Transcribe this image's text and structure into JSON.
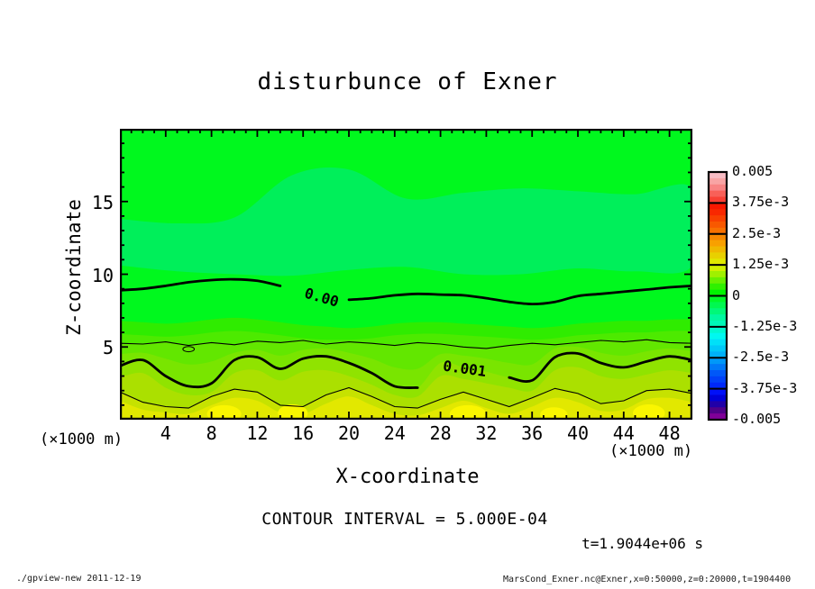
{
  "title": "disturbunce of Exner",
  "axes": {
    "x": {
      "label": "X-coordinate",
      "unit": "(×1000 m)",
      "ticks": [
        4,
        8,
        12,
        16,
        20,
        24,
        28,
        32,
        36,
        40,
        44,
        48
      ],
      "range": [
        0,
        50
      ]
    },
    "y": {
      "label": "Z-coordinate",
      "unit": "(×1000 m)",
      "ticks": [
        5,
        10,
        15
      ],
      "range": [
        0,
        20
      ]
    }
  },
  "notes": {
    "contour_interval": "CONTOUR INTERVAL = 5.000E-04",
    "time": "t=1.9044e+06 s"
  },
  "footer": {
    "left": "./gpview-new  2011-12-19",
    "right": "MarsCond_Exner.nc@Exner,x=0:50000,z=0:20000,t=1904400"
  },
  "colorbar": {
    "labels": [
      "0.005",
      "3.75e-3",
      "2.5e-3",
      "1.25e-3",
      "0",
      "-1.25e-3",
      "-2.5e-3",
      "-3.75e-3",
      "-0.005"
    ],
    "boundary_values": [
      0.005,
      0.00375,
      0.0025,
      0.00125,
      0,
      -0.00125,
      -0.0025,
      -0.00375,
      -0.005
    ],
    "segments": [
      [
        "#f8bcc4",
        "#f8a4a4",
        "#f88484",
        "#f86058",
        "#f84034"
      ],
      [
        "#f81800",
        "#f82800",
        "#f84000",
        "#f85800",
        "#f87000"
      ],
      [
        "#f88800",
        "#f8a000",
        "#f0b800",
        "#e8d000",
        "#e0e800"
      ],
      [
        "#d0f000",
        "#a0f000",
        "#68f000",
        "#30f000",
        "#00f400"
      ],
      [
        "#00f828",
        "#00f850",
        "#00f878",
        "#00f8a0",
        "#00f8b8"
      ],
      [
        "#00f8d0",
        "#00f8f0",
        "#00e0f8",
        "#00c8f8",
        "#00b0f8"
      ],
      [
        "#0098f8",
        "#0078f8",
        "#0058f8",
        "#0040f8",
        "#0028f8"
      ],
      [
        "#0010f8",
        "#0000d8",
        "#2000a8",
        "#500088",
        "#800098"
      ]
    ]
  },
  "chart_data": {
    "type": "heatmap",
    "subtype": "filled_contour",
    "title": "disturbunce of Exner",
    "xlabel": "X-coordinate (×1000 m)",
    "ylabel": "Z-coordinate (×1000 m)",
    "xlim": [
      0,
      50
    ],
    "ylim": [
      0,
      20
    ],
    "contour_interval": 0.0005,
    "fill_interval": 0.00025,
    "value_range": [
      -0.005,
      0.005
    ],
    "colors": {
      "background": "#00f81e",
      "shade_patch": "#00ef5a",
      "hot_spot": "#faf600",
      "line": "#000000"
    },
    "x_samples": [
      0,
      2,
      4,
      6,
      8,
      10,
      12,
      14,
      16,
      18,
      20,
      22,
      24,
      26,
      28,
      30,
      32,
      34,
      36,
      38,
      40,
      42,
      44,
      46,
      48,
      50
    ],
    "contours": [
      {
        "level": 0.0,
        "style": "thick",
        "smooth": true,
        "z": [
          8.9,
          9.0,
          9.2,
          9.45,
          9.6,
          9.65,
          9.55,
          9.2,
          8.8,
          8.5,
          8.25,
          8.35,
          8.55,
          8.65,
          8.6,
          8.55,
          8.35,
          8.1,
          7.95,
          8.1,
          8.5,
          8.65,
          8.8,
          8.95,
          9.1,
          9.2
        ],
        "label": {
          "text": "0.00",
          "gap": [
            15.4,
            19.8
          ],
          "x": 17.6,
          "z": 8.35,
          "angle": 16
        }
      },
      {
        "level": 0.0005,
        "style": "thin",
        "smooth": false,
        "z": [
          5.25,
          5.2,
          5.35,
          5.1,
          5.3,
          5.15,
          5.4,
          5.3,
          5.45,
          5.2,
          5.35,
          5.25,
          5.1,
          5.3,
          5.2,
          5.0,
          4.9,
          5.1,
          5.25,
          5.15,
          5.3,
          5.45,
          5.35,
          5.5,
          5.3,
          5.25
        ],
        "label": null
      },
      {
        "level": 0.001,
        "style": "thick",
        "smooth": true,
        "z": [
          3.7,
          4.1,
          3.0,
          2.3,
          2.5,
          4.1,
          4.3,
          3.5,
          4.2,
          4.35,
          3.9,
          3.2,
          2.3,
          2.2,
          3.9,
          3.6,
          3.3,
          2.9,
          2.7,
          4.3,
          4.55,
          3.9,
          3.6,
          4.0,
          4.35,
          4.1
        ],
        "label": {
          "text": "0.001",
          "gap": [
            26.9,
            33.3
          ],
          "x": 30.1,
          "z": 3.45,
          "angle": 8
        }
      },
      {
        "level": 0.0015,
        "style": "thin",
        "smooth": false,
        "z": [
          1.9,
          1.2,
          0.9,
          0.8,
          1.6,
          2.1,
          1.9,
          1.0,
          0.9,
          1.7,
          2.2,
          1.6,
          0.9,
          0.8,
          1.4,
          1.9,
          1.4,
          0.9,
          1.5,
          2.15,
          1.8,
          1.1,
          1.3,
          2.0,
          2.1,
          1.8
        ],
        "label": null
      }
    ],
    "mini_loop": {
      "x": 6.0,
      "z": 4.85,
      "rx": 0.5,
      "rz": 0.18
    },
    "fill_bands": [
      {
        "value_top": 0.00025,
        "color": "#2fec00",
        "smooth": true,
        "z": [
          6.8,
          6.7,
          6.6,
          6.7,
          6.9,
          7.0,
          6.9,
          6.7,
          6.5,
          6.4,
          6.3,
          6.4,
          6.6,
          6.7,
          6.7,
          6.6,
          6.5,
          6.4,
          6.3,
          6.4,
          6.6,
          6.7,
          6.8,
          6.8,
          6.9,
          6.9
        ]
      },
      {
        "value_top": 0.0004,
        "color": "#4dea00",
        "smooth": true,
        "z": [
          5.9,
          5.8,
          5.7,
          5.8,
          6.0,
          6.1,
          6.0,
          5.8,
          5.6,
          5.5,
          5.5,
          5.6,
          5.8,
          5.9,
          5.9,
          5.8,
          5.7,
          5.6,
          5.5,
          5.6,
          5.8,
          5.9,
          6.0,
          6.0,
          6.1,
          6.1
        ]
      },
      {
        "value_top": 0.0005,
        "color": "#62e700",
        "smooth": false,
        "z": [
          5.25,
          5.2,
          5.35,
          5.1,
          5.3,
          5.15,
          5.4,
          5.3,
          5.45,
          5.2,
          5.35,
          5.25,
          5.1,
          5.3,
          5.2,
          5.0,
          4.9,
          5.1,
          5.25,
          5.15,
          5.3,
          5.45,
          5.35,
          5.5,
          5.3,
          5.25
        ]
      },
      {
        "value_top": 0.00075,
        "color": "#79e500",
        "smooth": true,
        "z": [
          4.5,
          4.6,
          4.2,
          3.8,
          4.0,
          4.6,
          4.8,
          4.4,
          4.8,
          4.9,
          4.6,
          4.2,
          3.6,
          3.5,
          4.5,
          4.4,
          4.2,
          3.9,
          3.8,
          4.9,
          5.0,
          4.6,
          4.4,
          4.7,
          4.9,
          4.7
        ]
      },
      {
        "value_top": 0.001,
        "color": "#90e300",
        "smooth": true,
        "z": [
          3.7,
          4.1,
          3.0,
          2.3,
          2.5,
          4.1,
          4.3,
          3.5,
          4.2,
          4.35,
          3.9,
          3.2,
          2.3,
          2.2,
          3.9,
          3.6,
          3.3,
          2.9,
          2.7,
          4.3,
          4.55,
          3.9,
          3.6,
          4.0,
          4.35,
          4.1
        ]
      },
      {
        "value_top": 0.00125,
        "color": "#abe000",
        "smooth": true,
        "z": [
          2.9,
          3.2,
          2.2,
          1.7,
          1.9,
          3.2,
          3.4,
          2.7,
          3.3,
          3.4,
          3.0,
          2.4,
          1.7,
          1.6,
          3.0,
          2.8,
          2.5,
          2.2,
          2.0,
          3.4,
          3.6,
          3.0,
          2.8,
          3.1,
          3.4,
          3.2
        ]
      },
      {
        "value_top": 0.0015,
        "color": "#c6e200",
        "smooth": false,
        "z": [
          1.9,
          1.2,
          0.9,
          0.8,
          1.6,
          2.1,
          1.9,
          1.0,
          0.9,
          1.7,
          2.2,
          1.6,
          0.9,
          0.8,
          1.4,
          1.9,
          1.4,
          0.9,
          1.5,
          2.15,
          1.8,
          1.1,
          1.3,
          2.0,
          2.1,
          1.8
        ]
      },
      {
        "value_top": 0.00175,
        "color": "#e2e800",
        "smooth": true,
        "z": [
          1.3,
          0.7,
          0.5,
          0.4,
          1.0,
          1.5,
          1.3,
          0.5,
          0.4,
          1.1,
          1.6,
          1.0,
          0.4,
          0.3,
          0.8,
          1.3,
          0.8,
          0.4,
          0.9,
          1.5,
          1.2,
          0.6,
          0.7,
          1.4,
          1.5,
          1.2
        ]
      }
    ],
    "shade_patch": {
      "x": [
        0,
        5,
        10,
        15,
        20,
        25,
        30,
        35,
        40,
        45,
        50
      ],
      "z_upper": [
        13.8,
        13.5,
        13.9,
        16.8,
        17.2,
        15.2,
        15.6,
        15.9,
        15.7,
        15.5,
        15.9
      ],
      "z_lower": [
        10.6,
        10.2,
        10.0,
        9.9,
        10.3,
        10.5,
        10.0,
        10.0,
        10.4,
        10.2,
        10.6
      ]
    },
    "hot_spots": [
      {
        "x": 9.1,
        "z": 0.4,
        "rx": 1.5,
        "rz": 0.6
      },
      {
        "x": 15.1,
        "z": 0.45,
        "rx": 1.3,
        "rz": 0.6
      },
      {
        "x": 30.4,
        "z": 0.4,
        "rx": 1.6,
        "rz": 0.6
      },
      {
        "x": 37.9,
        "z": 0.35,
        "rx": 1.2,
        "rz": 0.5
      },
      {
        "x": 46.2,
        "z": 0.45,
        "rx": 1.4,
        "rz": 0.6
      }
    ]
  }
}
